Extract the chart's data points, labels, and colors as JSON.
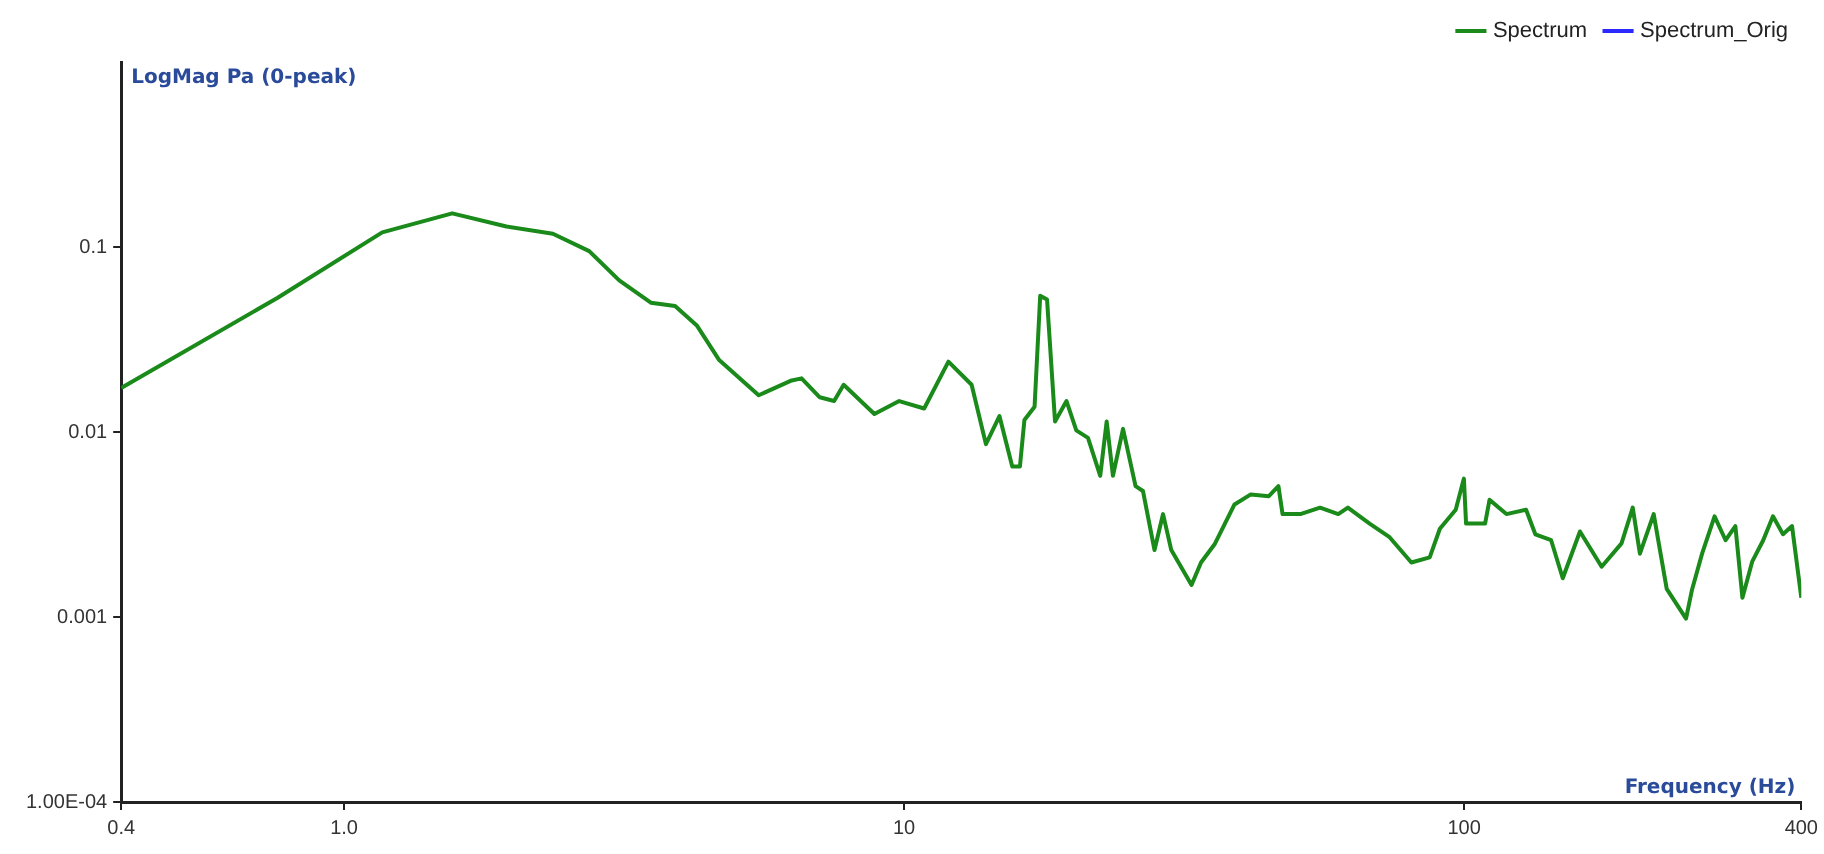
{
  "chart_data": {
    "type": "line",
    "ylabel": "LogMag Pa (0-peak)",
    "xlabel": "Frequency (Hz)",
    "log": "xy",
    "xlim": [
      0.4,
      400
    ],
    "ylim": [
      0.0001,
      1
    ],
    "xticks": [
      0.4,
      {
        "value": 1,
        "label": "1.0"
      },
      10,
      100,
      400
    ],
    "yticks": [
      {
        "value": 0.0001,
        "label": "1.00E-04"
      },
      0.001,
      0.01,
      0.1
    ],
    "grid": false,
    "legend": "top right",
    "line_style": "solid",
    "marker": "none",
    "series": [
      {
        "name": "Spectrum",
        "color": "#1a8a1a",
        "x": [
          0.4,
          0.76,
          1.17,
          1.56,
          1.95,
          2.36,
          2.74,
          3.1,
          3.53,
          3.9,
          4.27,
          4.67,
          5.5,
          6.3,
          6.56,
          7.07,
          7.5,
          7.8,
          8.85,
          9.8,
          10.86,
          12.0,
          13.2,
          14.0,
          14.8,
          15.6,
          16.1,
          16.4,
          17.1,
          17.5,
          18.0,
          18.6,
          19.5,
          20.3,
          21.3,
          22.4,
          23.0,
          23.6,
          24.6,
          25.9,
          26.7,
          28.0,
          29.0,
          30.0,
          32.6,
          33.9,
          35.9,
          38.9,
          41.6,
          44.8,
          46.6,
          47.4,
          51.0,
          55.3,
          59.6,
          62.0,
          67.8,
          73.6,
          80.5,
          86.8,
          90.5,
          96.6,
          99.9,
          100.8,
          109,
          111,
          119,
          129,
          134,
          143,
          150,
          161,
          176,
          191,
          200,
          206,
          218,
          230,
          249,
          255,
          266,
          280,
          293,
          305,
          314,
          327,
          342,
          356,
          371,
          385,
          400
        ],
        "values": [
          0.0173,
          0.053,
          0.12,
          0.152,
          0.129,
          0.118,
          0.095,
          0.066,
          0.05,
          0.048,
          0.0375,
          0.0246,
          0.0158,
          0.019,
          0.0195,
          0.0154,
          0.0147,
          0.018,
          0.0125,
          0.0147,
          0.0134,
          0.024,
          0.018,
          0.0086,
          0.0122,
          0.0065,
          0.0065,
          0.0116,
          0.0137,
          0.0545,
          0.052,
          0.0114,
          0.0147,
          0.0102,
          0.0093,
          0.0058,
          0.0114,
          0.0058,
          0.0104,
          0.0051,
          0.0048,
          0.0023,
          0.0036,
          0.0023,
          0.00149,
          0.00197,
          0.00249,
          0.00406,
          0.0046,
          0.0045,
          0.0051,
          0.0036,
          0.0036,
          0.0039,
          0.0036,
          0.0039,
          0.0032,
          0.0027,
          0.00197,
          0.0021,
          0.003,
          0.0038,
          0.0056,
          0.0032,
          0.0032,
          0.0043,
          0.0036,
          0.0038,
          0.0028,
          0.0026,
          0.00162,
          0.0029,
          0.00187,
          0.0025,
          0.0039,
          0.0022,
          0.0036,
          0.00142,
          0.00098,
          0.00139,
          0.0022,
          0.0035,
          0.0026,
          0.0031,
          0.00127,
          0.002,
          0.0026,
          0.0035,
          0.0028,
          0.0031,
          0.00127
        ]
      },
      {
        "name": "Spectrum_Orig",
        "color": "#2a2aff"
      }
    ]
  }
}
